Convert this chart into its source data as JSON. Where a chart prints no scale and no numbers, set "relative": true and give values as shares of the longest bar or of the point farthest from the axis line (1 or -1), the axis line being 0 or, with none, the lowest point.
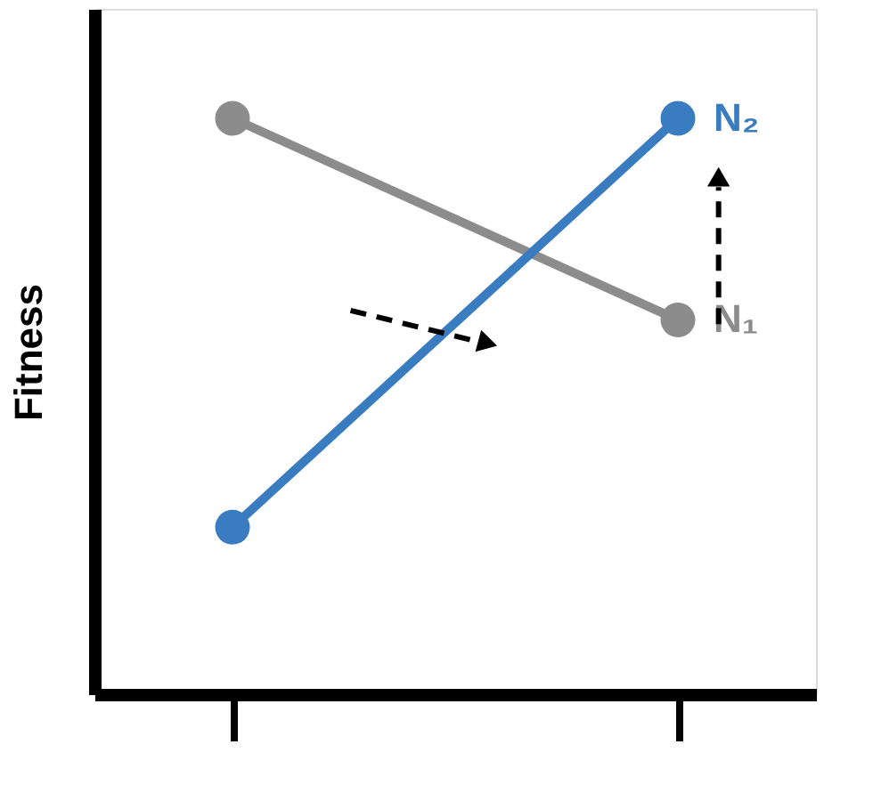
{
  "chart_data": {
    "type": "line",
    "ylabel": "Fitness",
    "categories": [
      null,
      null
    ],
    "relative": true,
    "legend": false,
    "marker": "circle",
    "line_style": "solid",
    "grid": false,
    "series": [
      {
        "name": "N₁",
        "color": "#8c8c8c",
        "values": [
          1,
          0.65
        ]
      },
      {
        "name": "N₂",
        "color": "#3a7cc0",
        "values": [
          0.29,
          1
        ]
      }
    ]
  }
}
